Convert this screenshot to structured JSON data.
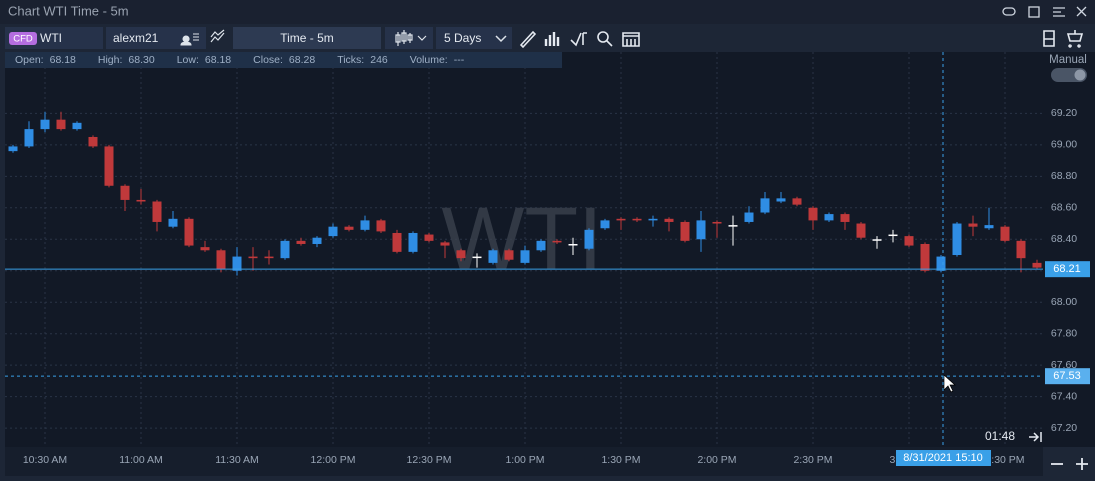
{
  "window": {
    "title": "Chart WTI Time - 5m"
  },
  "toolbar": {
    "badge": "CFD",
    "symbol": "WTI",
    "account": "alexm21",
    "interval": "Time - 5m",
    "range": "5 Days",
    "mode": "Manual"
  },
  "info_bar": [
    {
      "label": "Open:",
      "value": "68.18"
    },
    {
      "label": "High:",
      "value": "68.30"
    },
    {
      "label": "Low:",
      "value": "68.18"
    },
    {
      "label": "Close:",
      "value": "68.28"
    },
    {
      "label": "Ticks:",
      "value": "246"
    },
    {
      "label": "Volume:",
      "value": "---"
    }
  ],
  "chart": {
    "type": "candlestick",
    "watermark": "WTI",
    "up_color": "#2f8de4",
    "down_color": "#c0393b",
    "flat_color": "#ffffff",
    "categories": [
      null,
      null,
      "10:30 AM",
      null,
      null,
      null,
      null,
      null,
      "11:00 AM",
      null,
      null,
      null,
      null,
      null,
      "11:30 AM",
      null,
      null,
      null,
      null,
      null,
      "12:00 PM",
      null,
      null,
      null,
      null,
      null,
      "12:30 PM",
      null,
      null,
      null,
      null,
      null,
      "1:00 PM",
      null,
      null,
      null,
      null,
      null,
      "1:30 PM",
      null,
      null,
      null,
      null,
      null,
      "2:00 PM",
      null,
      null,
      null,
      null,
      null,
      "2:30 PM",
      null,
      null,
      null,
      null,
      null,
      "3:00 PM",
      null,
      null,
      null,
      null,
      null,
      "3:30 PM",
      null,
      null
    ],
    "open": [
      68.96,
      68.99,
      69.1,
      69.16,
      69.1,
      69.05,
      68.99,
      68.74,
      68.65,
      68.64,
      68.48,
      68.53,
      68.35,
      68.33,
      68.2,
      68.29,
      68.29,
      68.28,
      68.39,
      68.37,
      68.42,
      68.48,
      68.46,
      68.52,
      68.44,
      68.32,
      68.43,
      68.38,
      68.33,
      68.29,
      68.25,
      68.33,
      68.25,
      68.33,
      68.39,
      68.37,
      68.34,
      68.47,
      68.53,
      68.53,
      68.52,
      68.53,
      68.51,
      68.4,
      68.51,
      68.49,
      68.51,
      68.57,
      68.64,
      68.66,
      68.6,
      68.52,
      68.56,
      68.5,
      68.4,
      68.43,
      68.42,
      68.37,
      68.2,
      68.3,
      68.5,
      68.47,
      68.48,
      68.39,
      68.25
    ],
    "high": [
      69.0,
      69.15,
      69.21,
      69.21,
      69.15,
      69.06,
      69.0,
      68.75,
      68.72,
      68.65,
      68.58,
      68.54,
      68.39,
      68.34,
      68.35,
      68.35,
      68.33,
      68.4,
      68.41,
      68.42,
      68.5,
      68.49,
      68.55,
      68.53,
      68.46,
      68.45,
      68.44,
      68.39,
      68.34,
      68.31,
      68.34,
      68.34,
      68.36,
      68.4,
      68.4,
      68.41,
      68.47,
      68.53,
      68.54,
      68.54,
      68.55,
      68.54,
      68.52,
      68.58,
      68.52,
      68.55,
      68.61,
      68.7,
      68.7,
      68.67,
      68.61,
      68.57,
      68.57,
      68.51,
      68.42,
      68.46,
      68.43,
      68.38,
      68.3,
      68.51,
      68.55,
      68.6,
      68.49,
      68.4,
      68.27
    ],
    "low": [
      68.95,
      68.98,
      69.08,
      69.09,
      69.09,
      68.98,
      68.73,
      68.58,
      68.62,
      68.45,
      68.47,
      68.35,
      68.32,
      68.19,
      68.17,
      68.2,
      68.24,
      68.27,
      68.36,
      68.35,
      68.41,
      68.45,
      68.45,
      68.44,
      68.31,
      68.31,
      68.38,
      68.28,
      68.26,
      68.22,
      68.24,
      68.26,
      68.24,
      68.32,
      68.37,
      68.3,
      68.33,
      68.46,
      68.46,
      68.51,
      68.48,
      68.45,
      68.38,
      68.32,
      68.41,
      68.36,
      68.5,
      68.56,
      68.63,
      68.61,
      68.46,
      68.51,
      68.46,
      68.4,
      68.34,
      68.38,
      68.35,
      68.19,
      68.19,
      68.29,
      68.42,
      68.46,
      68.38,
      68.19,
      68.21
    ],
    "close": [
      68.99,
      69.1,
      69.16,
      69.1,
      69.14,
      68.99,
      68.74,
      68.65,
      68.64,
      68.51,
      68.53,
      68.36,
      68.33,
      68.21,
      68.29,
      68.28,
      68.28,
      68.39,
      68.37,
      68.41,
      68.48,
      68.46,
      68.52,
      68.45,
      68.32,
      68.44,
      68.39,
      68.36,
      68.28,
      68.29,
      68.33,
      68.27,
      68.33,
      68.39,
      68.38,
      68.37,
      68.46,
      68.52,
      68.52,
      68.52,
      68.53,
      68.51,
      68.39,
      68.52,
      68.5,
      68.49,
      68.57,
      68.66,
      68.66,
      68.62,
      68.52,
      68.56,
      68.51,
      68.41,
      68.4,
      68.43,
      68.36,
      68.2,
      68.29,
      68.5,
      68.48,
      68.49,
      68.39,
      68.28,
      68.22
    ],
    "ylim": [
      67.08,
      69.59
    ],
    "yticks": [
      {
        "value": 67.2,
        "label": "67.20"
      },
      {
        "value": 67.4,
        "label": "67.40"
      },
      {
        "value": 67.6,
        "label": "67.60"
      },
      {
        "value": 67.8,
        "label": "67.80"
      },
      {
        "value": 68.0,
        "label": "68.00"
      },
      {
        "value": 68.2,
        "label": "68.20"
      },
      {
        "value": 68.4,
        "label": "68.40"
      },
      {
        "value": 68.6,
        "label": "68.60"
      },
      {
        "value": 68.8,
        "label": "68.80"
      },
      {
        "value": 69.0,
        "label": "69.00"
      },
      {
        "value": 69.2,
        "label": "69.20"
      }
    ],
    "grid": true,
    "last_price": 68.21,
    "crosshair_price": 67.53,
    "crosshair_time": "8/31/2021 15:10",
    "countdown": "01:48"
  }
}
